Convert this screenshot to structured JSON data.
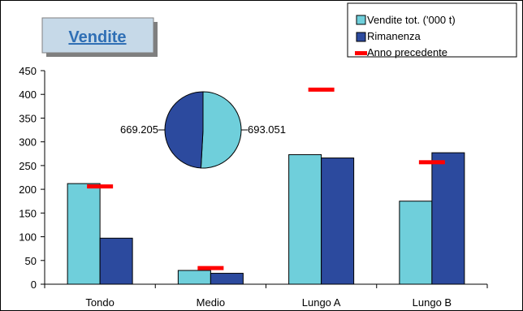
{
  "chart_data": {
    "type": "bar",
    "title": "Vendite",
    "categories": [
      "Tondo",
      "Medio",
      "Lungo A",
      "Lungo B"
    ],
    "ylim": [
      0,
      450
    ],
    "yticks": [
      "0",
      "50",
      "100",
      "150",
      "200",
      "250",
      "300",
      "350",
      "400",
      "450"
    ],
    "series": [
      {
        "name": "Vendite tot. ('000 t)",
        "kind": "bar",
        "color": "#6fcfdb",
        "values": [
          212,
          29,
          273,
          175
        ]
      },
      {
        "name": "Rimanenza",
        "kind": "bar",
        "color": "#2c4a9e",
        "values": [
          97,
          23,
          266,
          277
        ]
      },
      {
        "name": "Anno precedente",
        "kind": "marker",
        "color": "#ff0000",
        "values": [
          206,
          34,
          410,
          257
        ]
      }
    ],
    "pie": {
      "slices": [
        {
          "label": "693.051",
          "value": 693.051,
          "color": "#6fcfdb"
        },
        {
          "label": "669.205",
          "value": 669.205,
          "color": "#2c4a9e"
        }
      ]
    },
    "legend_position": "top-right",
    "grid": false
  }
}
